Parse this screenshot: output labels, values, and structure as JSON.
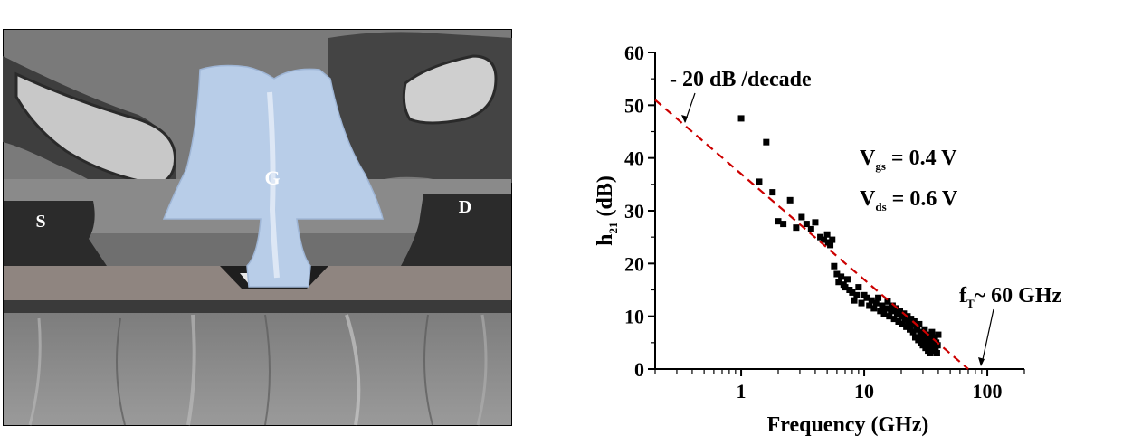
{
  "tem_image": {
    "labels": {
      "source": "S",
      "gate": "G",
      "drain": "D"
    },
    "colors": {
      "gate_overlay": "#b8cde8"
    }
  },
  "chart_data": {
    "type": "scatter",
    "xscale": "log",
    "xlim": [
      0.2,
      200
    ],
    "ylim": [
      0,
      60
    ],
    "xticks": [
      1,
      10,
      100
    ],
    "xtick_labels": [
      "1",
      "10",
      "100"
    ],
    "yticks": [
      0,
      10,
      20,
      30,
      40,
      50,
      60
    ],
    "ytick_labels": [
      "0",
      "10",
      "20",
      "30",
      "40",
      "50",
      "60"
    ],
    "xlabel": "Frequency (GHz)",
    "ylabel": {
      "main": "h",
      "sub": "21",
      "rest": " (dB)"
    },
    "annotations": {
      "slope": "- 20 dB /decade",
      "vgs": {
        "main": "V",
        "sub": "gs",
        "rest": " = 0.4 V"
      },
      "vds": {
        "main": "V",
        "sub": "ds",
        "rest": " = 0.6 V"
      },
      "ft": {
        "main": "f",
        "sub": "T",
        "rest": "~ 60 GHz"
      }
    },
    "fit_line": {
      "x": [
        0.2,
        70
      ],
      "y": [
        51,
        0
      ],
      "style": "dashed",
      "color": "#cc0000"
    },
    "colors": {
      "points": "#000000",
      "fit": "#cc0000"
    },
    "grid": false,
    "series": [
      {
        "x": [
          1.0,
          1.4,
          1.6,
          1.8,
          2.0,
          2.2,
          2.5,
          2.8,
          3.1,
          3.4,
          3.7,
          4.0,
          4.4,
          4.7,
          5.0,
          5.1,
          5.3,
          5.5,
          5.7,
          6.0,
          6.2,
          6.5,
          6.8,
          7.0,
          7.3,
          7.6,
          8.0,
          8.3,
          8.7,
          9.0,
          9.5,
          10.0,
          10.5,
          11.0,
          11.5,
          12.0,
          12.5,
          13.0,
          13.5,
          14.0,
          14.5,
          15.0,
          15.5,
          16.0,
          16.5,
          17.0,
          17.5,
          18.0,
          18.5,
          19.0,
          19.5,
          20.0,
          20.5,
          21.0,
          21.5,
          22.0,
          22.5,
          23.0,
          23.5,
          24.0,
          24.5,
          25.0,
          25.5,
          26.0,
          26.5,
          27.0,
          27.5,
          28.0,
          28.5,
          29.0,
          29.5,
          30.0,
          30.5,
          31.0,
          31.5,
          32.0,
          32.5,
          33.0,
          33.5,
          34.0,
          34.5,
          35.0,
          35.5,
          36.0,
          36.5,
          37.0,
          37.5,
          38.0,
          38.5,
          39.0,
          39.5,
          40.0
        ],
        "y": [
          47.5,
          35.5,
          43,
          33.5,
          28,
          27.5,
          32,
          26.8,
          28.8,
          27.5,
          26.5,
          27.8,
          25,
          24.5,
          25.5,
          24,
          23.5,
          24.5,
          19.5,
          18,
          16.5,
          17.5,
          16,
          15.5,
          17,
          15,
          14.5,
          13,
          14,
          15.5,
          12.5,
          14,
          13.5,
          12,
          13,
          11.5,
          12.5,
          13.5,
          11,
          12,
          10.5,
          11.5,
          12.8,
          10,
          11,
          12,
          9.5,
          11.5,
          10.5,
          9,
          11,
          10,
          8.5,
          10.5,
          9.5,
          8,
          10,
          9,
          7.5,
          9.5,
          8.5,
          7,
          9,
          6,
          8,
          7.5,
          5.5,
          8.5,
          6.5,
          5,
          7,
          4.5,
          6,
          7.5,
          4,
          5.5,
          6.5,
          3.5,
          5,
          6,
          3,
          4.5,
          7,
          4,
          5.5,
          3.5,
          6,
          4,
          5,
          3,
          4.5,
          6.5
        ]
      }
    ]
  }
}
